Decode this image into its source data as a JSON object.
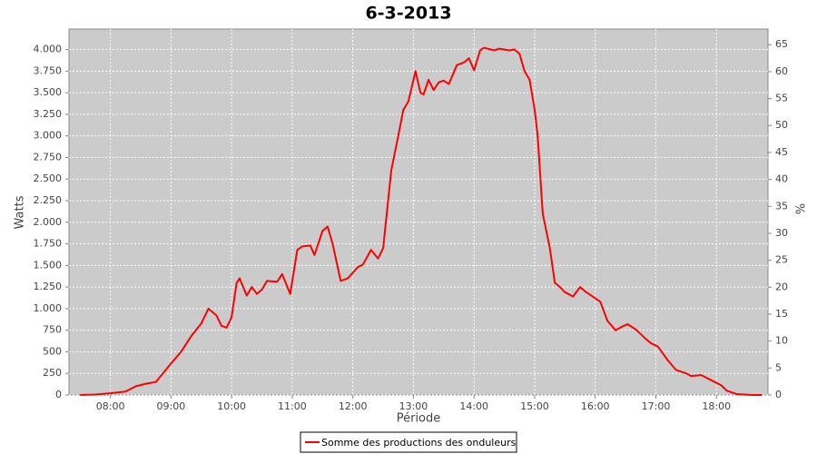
{
  "chart_data": {
    "type": "line",
    "title": "6-3-2013",
    "x_label": "Période",
    "y_label": "Watts",
    "y2_label": "%",
    "x": [
      "07:30",
      "07:45",
      "08:00",
      "08:15",
      "08:25",
      "08:35",
      "08:45",
      "09:00",
      "09:10",
      "09:20",
      "09:30",
      "09:37",
      "09:45",
      "09:50",
      "09:55",
      "10:00",
      "10:05",
      "10:08",
      "10:15",
      "10:20",
      "10:25",
      "10:30",
      "10:35",
      "10:45",
      "10:50",
      "10:58",
      "11:05",
      "11:10",
      "11:18",
      "11:22",
      "11:30",
      "11:35",
      "11:40",
      "11:48",
      "11:55",
      "12:05",
      "12:10",
      "12:18",
      "12:25",
      "12:30",
      "12:38",
      "12:45",
      "12:50",
      "12:55",
      "13:02",
      "13:07",
      "13:10",
      "13:15",
      "13:20",
      "13:25",
      "13:30",
      "13:35",
      "13:43",
      "13:50",
      "13:55",
      "14:00",
      "14:06",
      "14:10",
      "14:20",
      "14:25",
      "14:35",
      "14:40",
      "14:45",
      "14:50",
      "14:55",
      "15:00",
      "15:03",
      "15:08",
      "15:15",
      "15:20",
      "15:25",
      "15:30",
      "15:35",
      "15:38",
      "15:45",
      "15:50",
      "15:55",
      "16:05",
      "16:12",
      "16:20",
      "16:28",
      "16:32",
      "16:40",
      "16:50",
      "16:55",
      "17:02",
      "17:12",
      "17:20",
      "17:30",
      "17:35",
      "17:45",
      "17:55",
      "18:05",
      "18:10",
      "18:20",
      "18:35",
      "18:45"
    ],
    "series": [
      {
        "name": "Somme des productions des onduleurs",
        "color": "#ff0000",
        "values": [
          0,
          5,
          20,
          40,
          100,
          130,
          150,
          365,
          500,
          680,
          830,
          1000,
          920,
          800,
          780,
          900,
          1300,
          1350,
          1150,
          1250,
          1170,
          1220,
          1320,
          1310,
          1400,
          1170,
          1680,
          1720,
          1730,
          1620,
          1900,
          1950,
          1750,
          1320,
          1350,
          1480,
          1510,
          1680,
          1580,
          1700,
          2600,
          3000,
          3300,
          3400,
          3750,
          3500,
          3480,
          3650,
          3530,
          3620,
          3640,
          3600,
          3820,
          3850,
          3900,
          3760,
          3990,
          4020,
          3990,
          4010,
          3990,
          4000,
          3950,
          3750,
          3650,
          3300,
          3000,
          2100,
          1700,
          1300,
          1250,
          1190,
          1160,
          1140,
          1250,
          1200,
          1160,
          1080,
          860,
          750,
          800,
          820,
          760,
          650,
          600,
          560,
          400,
          290,
          250,
          220,
          230,
          170,
          110,
          50,
          10,
          0,
          0
        ]
      }
    ],
    "xlim": [
      "07:19",
      "18:51"
    ],
    "xticks": [
      "08:00",
      "09:00",
      "10:00",
      "11:00",
      "12:00",
      "13:00",
      "14:00",
      "15:00",
      "16:00",
      "17:00",
      "18:00"
    ],
    "ylim": [
      0,
      4237
    ],
    "yticks": [
      0,
      250,
      500,
      750,
      {
        "value": 1000,
        "label": "1.000"
      },
      {
        "value": 1250,
        "label": "1.250"
      },
      {
        "value": 1500,
        "label": "1.500"
      },
      {
        "value": 1750,
        "label": "1.750"
      },
      {
        "value": 2000,
        "label": "2.000"
      },
      {
        "value": 2250,
        "label": "2.250"
      },
      {
        "value": 2500,
        "label": "2.500"
      },
      {
        "value": 2750,
        "label": "2.750"
      },
      {
        "value": 3000,
        "label": "3.000"
      },
      {
        "value": 3250,
        "label": "3.250"
      },
      {
        "value": 3500,
        "label": "3.500"
      },
      {
        "value": 3750,
        "label": "3.750"
      },
      {
        "value": 4000,
        "label": "4.000"
      }
    ],
    "y2lim": [
      0,
      67.9
    ],
    "y2ticks": [
      0,
      5,
      10,
      15,
      20,
      25,
      30,
      35,
      40,
      45,
      50,
      55,
      60,
      65
    ],
    "grid": true
  }
}
